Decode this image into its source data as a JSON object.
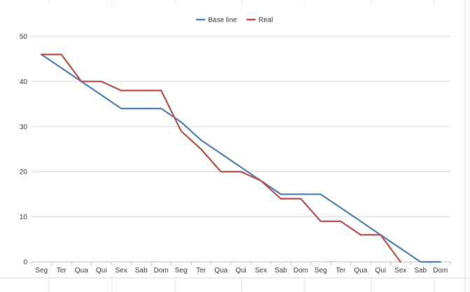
{
  "chart_data": {
    "type": "line",
    "title": "",
    "xlabel": "",
    "ylabel": "",
    "categories": [
      "Seg",
      "Ter",
      "Qua",
      "Qui",
      "Sex",
      "Sab",
      "Dom",
      "Seg",
      "Ter",
      "Qua",
      "Qui",
      "Sex",
      "Sab",
      "Dom",
      "Seg",
      "Ter",
      "Qua",
      "Qui",
      "Sex",
      "Sab",
      "Dom"
    ],
    "ylim": [
      0,
      50
    ],
    "yticks": [
      "0",
      "10",
      "20",
      "30",
      "40",
      "50"
    ],
    "grid": true,
    "legend": "top-center",
    "series": [
      {
        "name": "Base line",
        "color": "#4f81bd",
        "values": [
          46,
          43,
          40,
          37,
          34,
          34,
          34,
          31,
          27,
          24,
          21,
          18,
          15,
          15,
          15,
          12,
          9,
          6,
          3,
          0,
          0
        ]
      },
      {
        "name": "Real",
        "color": "#c0504d",
        "values": [
          46,
          46,
          40,
          40,
          38,
          38,
          38,
          29,
          25,
          20,
          20,
          18,
          14,
          14,
          9,
          9,
          6,
          6,
          0,
          null,
          null
        ]
      }
    ]
  }
}
